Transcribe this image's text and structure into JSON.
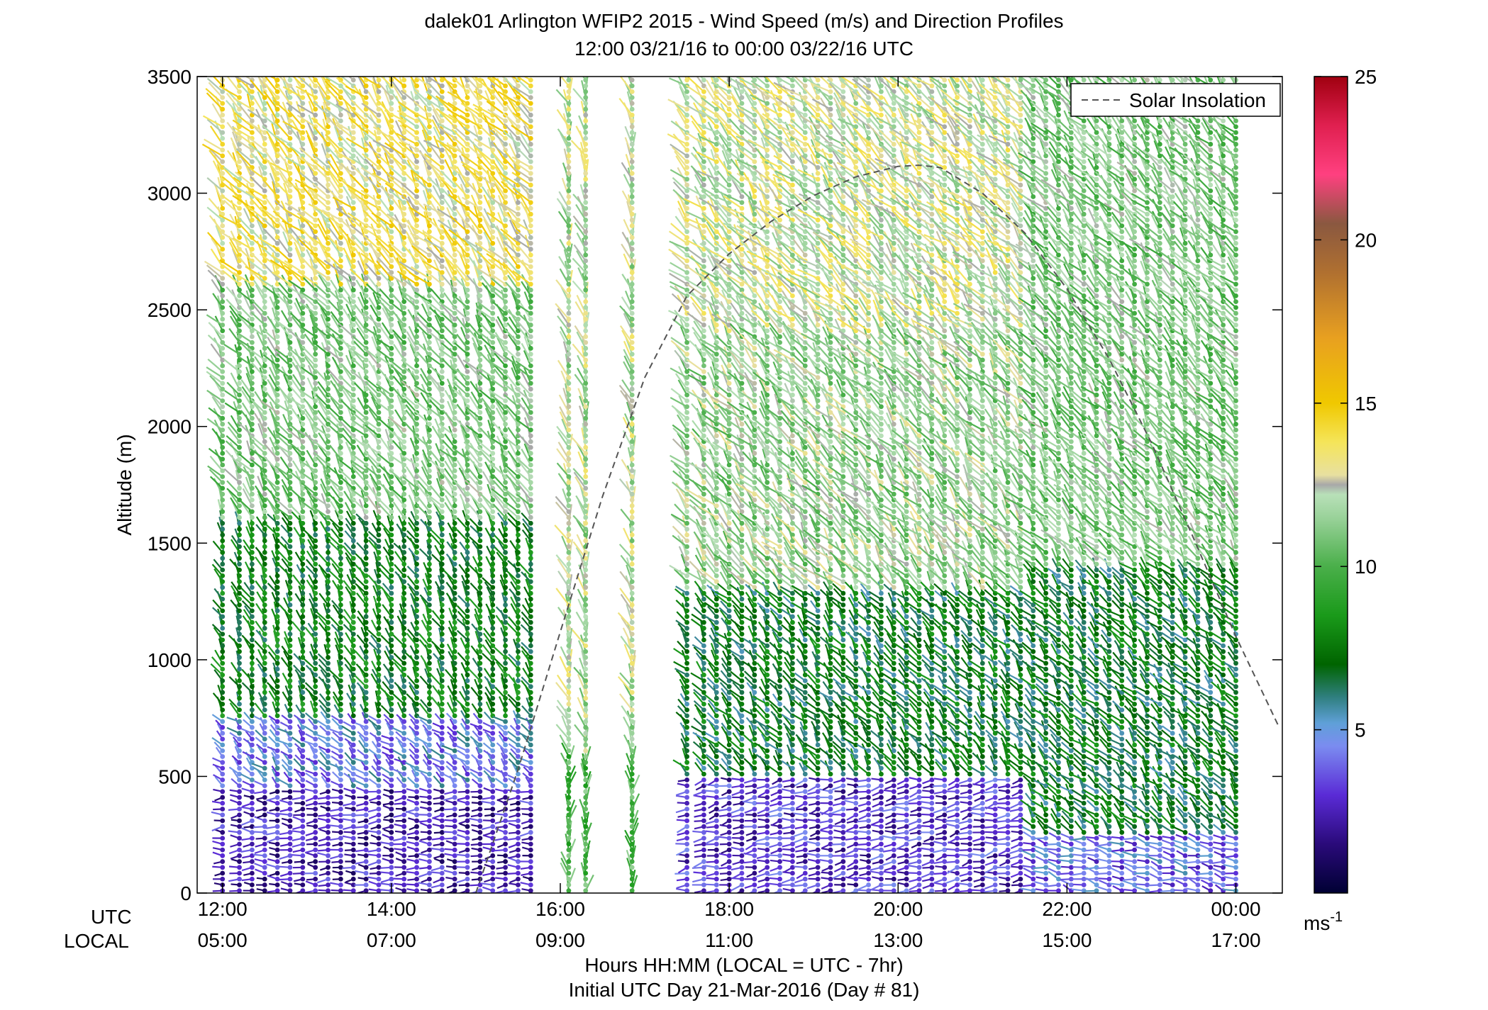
{
  "chart_data": {
    "type": "wind-barb-profile",
    "title": "dalek01 Arlington WFIP2 2015 - Wind Speed (m/s) and Direction Profiles",
    "subtitle": "12:00 03/21/16 to 00:00 03/22/16  UTC",
    "ylabel": "Altitude (m)",
    "xlabel": "Hours HH:MM  (LOCAL = UTC - 7hr)",
    "xlabel2": "Initial UTC Day 21-Mar-2016 (Day # 81)",
    "row_label_utc": "UTC",
    "row_label_local": "LOCAL",
    "ylim": [
      0,
      3500
    ],
    "xlim_hours": [
      11.7,
      24.55
    ],
    "y_ticks": [
      0,
      500,
      1000,
      1500,
      2000,
      2500,
      3000,
      3500
    ],
    "y_tick_labels": [
      "0",
      "500",
      "1000",
      "1500",
      "2000",
      "2500",
      "3000",
      "3500"
    ],
    "x_ticks_hours": [
      12,
      14,
      16,
      18,
      20,
      22,
      24
    ],
    "x_tick_labels_utc": [
      "12:00",
      "14:00",
      "16:00",
      "18:00",
      "20:00",
      "22:00",
      "00:00"
    ],
    "x_tick_labels_local": [
      "05:00",
      "07:00",
      "09:00",
      "11:00",
      "13:00",
      "15:00",
      "17:00"
    ],
    "legend": {
      "label": "Solar Insolation",
      "position": "top-right"
    },
    "solar_insolation_curve": {
      "hours": [
        15.0,
        15.5,
        16.0,
        16.5,
        17.0,
        17.5,
        18.0,
        18.5,
        19.0,
        19.5,
        20.0,
        20.25,
        20.5,
        21.0,
        21.5,
        22.0,
        22.5,
        23.0,
        23.5,
        24.0,
        24.5
      ],
      "altitude": [
        0,
        530,
        1120,
        1700,
        2210,
        2560,
        2740,
        2880,
        2990,
        3070,
        3115,
        3120,
        3110,
        3000,
        2830,
        2590,
        2290,
        1930,
        1520,
        1100,
        720
      ],
      "style": "dashed"
    },
    "colorbar": {
      "min": 0,
      "max": 25,
      "ticks": [
        5,
        10,
        15,
        20,
        25
      ],
      "tick_labels": [
        "5",
        "10",
        "15",
        "20",
        "25"
      ],
      "unit_label": "ms",
      "unit_exponent": "-1",
      "stops": [
        {
          "v": 0,
          "c": "#000033"
        },
        {
          "v": 1.5,
          "c": "#2a0a7a"
        },
        {
          "v": 3,
          "c": "#5a2bd6"
        },
        {
          "v": 4.5,
          "c": "#7b8cf0"
        },
        {
          "v": 5.2,
          "c": "#5fa0d8"
        },
        {
          "v": 6,
          "c": "#2f7f7f"
        },
        {
          "v": 7,
          "c": "#006400"
        },
        {
          "v": 8.5,
          "c": "#1a9a1a"
        },
        {
          "v": 10,
          "c": "#4aaf4a"
        },
        {
          "v": 11.5,
          "c": "#9ad29a"
        },
        {
          "v": 12.2,
          "c": "#b8e0b8"
        },
        {
          "v": 12.5,
          "c": "#a8a8a8"
        },
        {
          "v": 12.8,
          "c": "#e8e0a0"
        },
        {
          "v": 13.8,
          "c": "#f5e55a"
        },
        {
          "v": 15,
          "c": "#f0c800"
        },
        {
          "v": 17,
          "c": "#e8a020"
        },
        {
          "v": 19,
          "c": "#b07030"
        },
        {
          "v": 20.5,
          "c": "#8a5840"
        },
        {
          "v": 22,
          "c": "#ff4080"
        },
        {
          "v": 23.5,
          "c": "#e02050"
        },
        {
          "v": 25,
          "c": "#a00010"
        }
      ]
    },
    "profile_times_hours": [
      12.0,
      12.2,
      12.35,
      12.5,
      12.65,
      12.8,
      12.95,
      13.1,
      13.25,
      13.4,
      13.55,
      13.7,
      13.85,
      14.0,
      14.15,
      14.3,
      14.45,
      14.6,
      14.75,
      14.9,
      15.05,
      15.2,
      15.35,
      15.5,
      15.65,
      16.1,
      16.3,
      16.85,
      17.5,
      17.7,
      17.85,
      18.0,
      18.15,
      18.3,
      18.45,
      18.6,
      18.75,
      18.9,
      19.05,
      19.2,
      19.35,
      19.5,
      19.65,
      19.8,
      19.95,
      20.1,
      20.25,
      20.4,
      20.55,
      20.7,
      20.85,
      21.0,
      21.15,
      21.3,
      21.45,
      21.6,
      21.75,
      21.9,
      22.05,
      22.2,
      22.35,
      22.5,
      22.65,
      22.8,
      22.95,
      23.1,
      23.25,
      23.4,
      23.55,
      23.7,
      23.85,
      24.0
    ],
    "altitude_levels_m": [
      10,
      35,
      60,
      85,
      110,
      135,
      160,
      185,
      210,
      235,
      260,
      285,
      310,
      335,
      360,
      385,
      410,
      435,
      460,
      485,
      510,
      535,
      560,
      585,
      610,
      635,
      660,
      685,
      710,
      735,
      760,
      785,
      810,
      835,
      860,
      885,
      910,
      935,
      960,
      985,
      1010,
      1035,
      1060,
      1085,
      1110,
      1135,
      1160,
      1185,
      1210,
      1235,
      1260,
      1285,
      1310,
      1335,
      1360,
      1385,
      1410,
      1435,
      1460,
      1485,
      1510,
      1535,
      1560,
      1585,
      1610,
      1635,
      1660,
      1685,
      1710,
      1735,
      1760,
      1785,
      1810,
      1835,
      1860,
      1885,
      1910,
      1935,
      1960,
      1985,
      2010,
      2035,
      2060,
      2085,
      2110,
      2135,
      2160,
      2185,
      2210,
      2235,
      2260,
      2285,
      2310,
      2335,
      2360,
      2385,
      2410,
      2435,
      2460,
      2485,
      2510,
      2535,
      2560,
      2585,
      2610,
      2635,
      2660,
      2685,
      2710,
      2735,
      2760,
      2785,
      2810,
      2835,
      2860,
      2885,
      2910,
      2935,
      2960,
      2985,
      3010,
      3035,
      3060,
      3085,
      3110,
      3135,
      3160,
      3185,
      3210,
      3235,
      3260,
      3285,
      3310,
      3335,
      3360,
      3385,
      3410,
      3435,
      3460,
      3485
    ],
    "wind_speed_profiles": [
      {
        "t_range": [
          12.0,
          15.7
        ],
        "layers": [
          {
            "z": [
              0,
              450
            ],
            "speed": 2.5,
            "dir_deg": 270
          },
          {
            "z": [
              450,
              750
            ],
            "speed": 4.5,
            "dir_deg": 225
          },
          {
            "z": [
              750,
              1600
            ],
            "speed": 7.5,
            "dir_deg": 200
          },
          {
            "z": [
              1600,
              2600
            ],
            "speed": 11.0,
            "dir_deg": 210
          },
          {
            "z": [
              2600,
              3500
            ],
            "speed": 13.5,
            "dir_deg": 215
          }
        ]
      },
      {
        "t_range": [
          16.0,
          17.0
        ],
        "layers": [
          {
            "z": [
              0,
              600
            ],
            "speed": 10.0,
            "dir_deg": 180
          },
          {
            "z": [
              600,
              3500
            ],
            "speed": 12.0,
            "dir_deg": 195
          }
        ]
      },
      {
        "t_range": [
          17.4,
          21.5
        ],
        "layers": [
          {
            "z": [
              0,
              500
            ],
            "speed": 3.0,
            "dir_deg": 280
          },
          {
            "z": [
              500,
              1300
            ],
            "speed": 7.0,
            "dir_deg": 215
          },
          {
            "z": [
              1300,
              2400
            ],
            "speed": 11.5,
            "dir_deg": 215
          },
          {
            "z": [
              2400,
              3500
            ],
            "speed": 12.5,
            "dir_deg": 220
          }
        ]
      },
      {
        "t_range": [
          21.5,
          24.0
        ],
        "layers": [
          {
            "z": [
              0,
              250
            ],
            "speed": 4.0,
            "dir_deg": 255
          },
          {
            "z": [
              250,
              1400
            ],
            "speed": 7.0,
            "dir_deg": 220
          },
          {
            "z": [
              1400,
              3500
            ],
            "speed": 11.0,
            "dir_deg": 215
          }
        ]
      }
    ]
  }
}
